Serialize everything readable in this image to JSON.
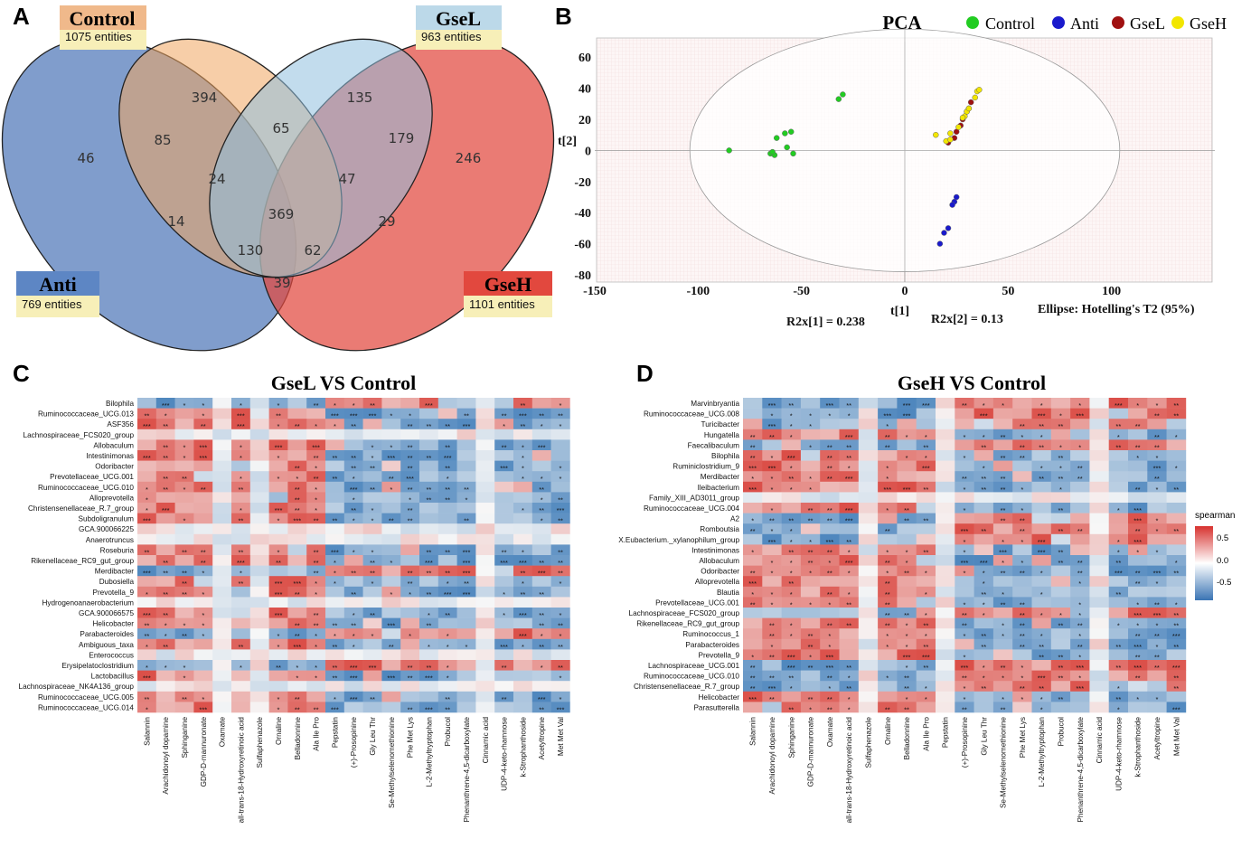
{
  "panels": {
    "a": "A",
    "b": "B",
    "c": "C",
    "d": "D"
  },
  "venn": {
    "sets": [
      {
        "name": "Control",
        "entities": "1075 entities",
        "color": "#f0a560"
      },
      {
        "name": "GseL",
        "entities": "963 entities",
        "color": "#8fc0df"
      },
      {
        "name": "Anti",
        "entities": "769 entities",
        "color": "#4f77b8"
      },
      {
        "name": "GseH",
        "entities": "1101 entities",
        "color": "#e2483e"
      }
    ],
    "regions": [
      "46",
      "394",
      "135",
      "246",
      "85",
      "65",
      "179",
      "24",
      "47",
      "14",
      "369",
      "29",
      "130",
      "62",
      "39"
    ]
  },
  "chart_data": [
    {
      "type": "scatter",
      "title": "PCA",
      "legend": [
        "Control",
        "Anti",
        "GseL",
        "GseH"
      ],
      "colors": {
        "Control": "#22cc22",
        "Anti": "#1a1acc",
        "GseL": "#a01010",
        "GseH": "#f2e600"
      },
      "xlabel": "t[1]",
      "ylabel": "t[2]",
      "xlim": [
        -150,
        150
      ],
      "ylim": [
        -80,
        70
      ],
      "xticks": [
        "-150",
        "-100",
        "-50",
        "0",
        "50",
        "100"
      ],
      "yticks": [
        "60",
        "40",
        "20",
        "0",
        "-20",
        "-40",
        "-60",
        "-80"
      ],
      "r2x1": "R2x[1] = 0.238",
      "r2x2": "R2x[2] = 0.13",
      "ellipse": "Ellipse: Hotelling's T2 (95%)",
      "ellipse_axes": [
        104,
        78
      ],
      "series": [
        {
          "name": "Control",
          "points": [
            [
              -85,
              0
            ],
            [
              -65,
              -2
            ],
            [
              -63,
              -3
            ],
            [
              -62,
              8
            ],
            [
              -58,
              11
            ],
            [
              -57,
              2
            ],
            [
              -55,
              12
            ],
            [
              -54,
              -2
            ],
            [
              -32,
              33
            ],
            [
              -30,
              36
            ],
            [
              -64,
              -1
            ]
          ]
        },
        {
          "name": "Anti",
          "points": [
            [
              17,
              -60
            ],
            [
              19,
              -53
            ],
            [
              21,
              -50
            ],
            [
              24,
              -33
            ],
            [
              25,
              -30
            ],
            [
              23,
              -35
            ]
          ]
        },
        {
          "name": "GseL",
          "points": [
            [
              21,
              5
            ],
            [
              24,
              8
            ],
            [
              25,
              12
            ],
            [
              27,
              16
            ],
            [
              28,
              20
            ],
            [
              30,
              25
            ],
            [
              31,
              27
            ],
            [
              32,
              31
            ]
          ]
        },
        {
          "name": "GseH",
          "points": [
            [
              15,
              10
            ],
            [
              20,
              6
            ],
            [
              22,
              11
            ],
            [
              26,
              15
            ],
            [
              29,
              22
            ],
            [
              30,
              25
            ],
            [
              31,
              27
            ],
            [
              34,
              34
            ],
            [
              35,
              38
            ],
            [
              36,
              39
            ],
            [
              28,
              21
            ],
            [
              22,
              7
            ]
          ]
        }
      ]
    },
    {
      "type": "heatmap",
      "title": "GseL  VS  Control",
      "legend_title": "spearman",
      "scale_ticks": [
        "0.5",
        "0.0",
        "-0.5"
      ],
      "rows": [
        "Bilophila",
        "Ruminococcaceae_UCG.013",
        "ASF356",
        "Lachnospiraceae_FCS020_group",
        "Allobaculum",
        "Intestinimonas",
        "Odoribacter",
        "Prevotellaceae_UCG.001",
        "Ruminococcaceae_UCG.010",
        "Alloprevotella",
        "Christensenellaceae_R.7_group",
        "Subdoligranulum",
        "GCA.900066225",
        "Anaerotruncus",
        "Roseburia",
        "Rikenellaceae_RC9_gut_group",
        "Merdibacter",
        "Dubosiella",
        "Prevotella_9",
        "Hydrogenoanaerobacterium",
        "GCA.900066575",
        "Helicobacter",
        "Parabacteroides",
        "Ambiguous_taxa",
        "Enterococcus",
        "Erysipelatoclostridium",
        "Lactobacillus",
        "Lachnospiraceae_NK4A136_group",
        "Ruminococcaceae_UCG.005",
        "Ruminococcaceae_UCG.014"
      ],
      "columns": [
        "Salannin",
        "Arachidonoyl dopamine",
        "Sphinganine",
        "GDP-D-mannuronate",
        "Oxamate",
        "all-trans-18-Hydroxyretinoic acid",
        "Sulfaphenazole",
        "Ornaline",
        "Belladonnine",
        "Ala Ile Pro",
        "Pepstatin",
        "(+)-Prosopinine",
        "Gly Leu Thr",
        "Se-Methylselenomethionine",
        "Phe Met Lys",
        "L-2-Methyltryptophan",
        "Probucol",
        "Phenanthrene-4,5-dicarboxylate",
        "Cinnamic acid",
        "UDP-4-keto-rhamnose",
        "k-Strophanthoside",
        "Acetyltropine",
        "Met Met Val"
      ],
      "col_sign": [
        1,
        1,
        1,
        1,
        0,
        1,
        0,
        1,
        1,
        1,
        -1,
        -1,
        -1,
        -1,
        -1,
        -1,
        -1,
        -1,
        0,
        -1,
        -1,
        -1,
        -1
      ],
      "row_sign": [
        -1,
        1,
        1,
        0,
        1,
        1,
        1,
        1,
        1,
        1,
        1,
        1,
        0,
        0,
        1,
        1,
        -1,
        1,
        1,
        0,
        1,
        1,
        -1,
        1,
        0,
        -1,
        1,
        0,
        1,
        1
      ]
    },
    {
      "type": "heatmap",
      "title": "GseH  VS  Control",
      "legend_title": "spearman",
      "rows": [
        "Marvinbryantia",
        "Ruminococcaceae_UCG.008",
        "Turicibacter",
        "Hungatella",
        "Faecalibaculum",
        "Bilophila",
        "Ruminiclostridium_9",
        "Merdibacter",
        "Ileibacterium",
        "Family_XIII_AD3011_group",
        "Ruminococcaceae_UCG.004",
        "A2",
        "Romboutsia",
        "X.Eubacterium._xylanophilum_group",
        "Intestinimonas",
        "Allobaculum",
        "Odoribacter",
        "Alloprevotella",
        "Blautia",
        "Prevotellaceae_UCG.001",
        "Lachnospiraceae_FCS020_group",
        "Rikenellaceae_RC9_gut_group",
        "Ruminococcus_1",
        "Parabacteroides",
        "Prevotella_9",
        "Lachnospiraceae_UCG.001",
        "Ruminococcaceae_UCG.010",
        "Christensenellaceae_R.7_group",
        "Helicobacter",
        "Parasutterella"
      ],
      "columns": [
        "Salannin",
        "Arachidonoyl dopamine",
        "Sphinganine",
        "GDP-D-mannuronate",
        "Oxamate",
        "all-trans-18-Hydroxyretinoic acid",
        "Sulfaphenazole",
        "Ornaline",
        "Belladonnine",
        "Ala Ile Pro",
        "Pepstatin",
        "(+)-Prosopinine",
        "Gly Leu Thr",
        "Se-Methylselenomethionine",
        "Phe Met Lys",
        "L-2-Methyltryptophan",
        "Probucol",
        "Phenanthrene-4,5-dicarboxylate",
        "Cinnamic acid",
        "UDP-4-keto-rhamnose",
        "k-Strophanthoside",
        "Acetyltropine",
        "Met Met Val"
      ],
      "col_sign": [
        1,
        1,
        1,
        1,
        1,
        1,
        0,
        1,
        1,
        1,
        0,
        -1,
        -1,
        -1,
        -1,
        -1,
        -1,
        -1,
        0,
        -1,
        -1,
        -1,
        -1
      ],
      "row_sign": [
        -1,
        -1,
        -1,
        1,
        -1,
        1,
        1,
        1,
        1,
        0,
        1,
        -1,
        -1,
        -1,
        1,
        1,
        1,
        1,
        1,
        1,
        -1,
        1,
        1,
        1,
        1,
        -1,
        -1,
        -1,
        1,
        1
      ]
    }
  ]
}
